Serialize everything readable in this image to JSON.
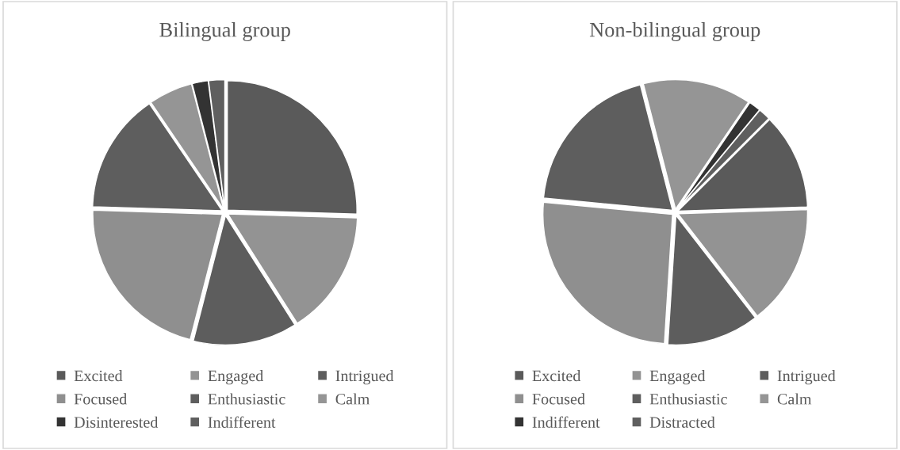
{
  "chart_data": [
    {
      "type": "pie",
      "title": "Bilingual group",
      "legend": "bottom",
      "categories": [
        "Excited",
        "Engaged",
        "Intrigued",
        "Focused",
        "Enthusiastic",
        "Calm",
        "Disinterested",
        "Indifferent"
      ],
      "values": [
        25.5,
        15.5,
        13,
        21.5,
        15,
        5.5,
        2,
        2
      ],
      "colors": [
        "#5a5a5a",
        "#939393",
        "#5d5d5d",
        "#8f8f8f",
        "#5e5e5e",
        "#959595",
        "#333333",
        "#5f5f5f"
      ]
    },
    {
      "type": "pie",
      "title": "Non-bilingual group",
      "legend": "bottom",
      "categories": [
        "Excited",
        "Engaged",
        "Intrigued",
        "Focused",
        "Enthusiastic",
        "Calm",
        "Indifferent",
        "Distracted"
      ],
      "values": [
        12,
        15,
        11.5,
        25.5,
        19.5,
        13.5,
        1.5,
        1.5
      ],
      "colors": [
        "#5a5a5a",
        "#939393",
        "#5d5d5d",
        "#8f8f8f",
        "#5e5e5e",
        "#959595",
        "#333333",
        "#5f5f5f"
      ]
    }
  ]
}
